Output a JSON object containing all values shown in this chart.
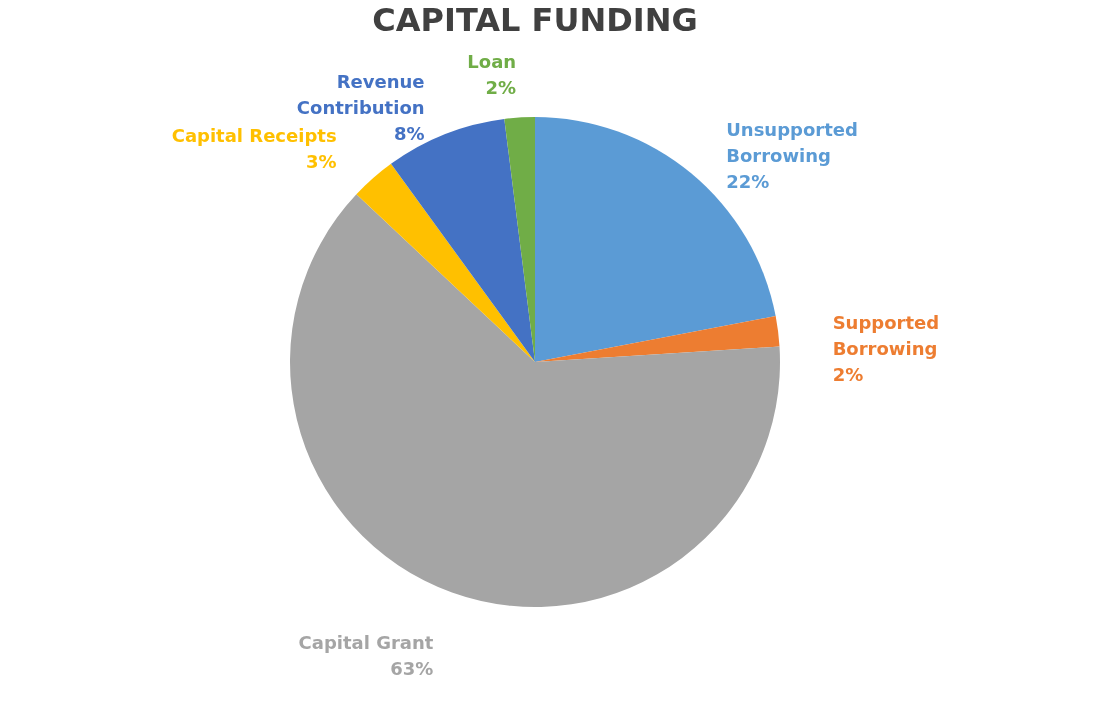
{
  "chart_data": {
    "type": "pie",
    "title": "CAPITAL FUNDING",
    "categories": [
      "Unsupported Borrowing",
      "Supported Borrowing",
      "Capital Grant",
      "Capital Receipts",
      "Revenue Contribution",
      "Loan"
    ],
    "values": [
      22,
      2,
      63,
      3,
      8,
      2
    ],
    "value_labels": [
      "22%",
      "2%",
      "63%",
      "3%",
      "8%",
      "2%"
    ],
    "colors": [
      "#5b9bd5",
      "#ed7d31",
      "#a5a5a5",
      "#ffc000",
      "#4472c4",
      "#70ad47"
    ]
  }
}
